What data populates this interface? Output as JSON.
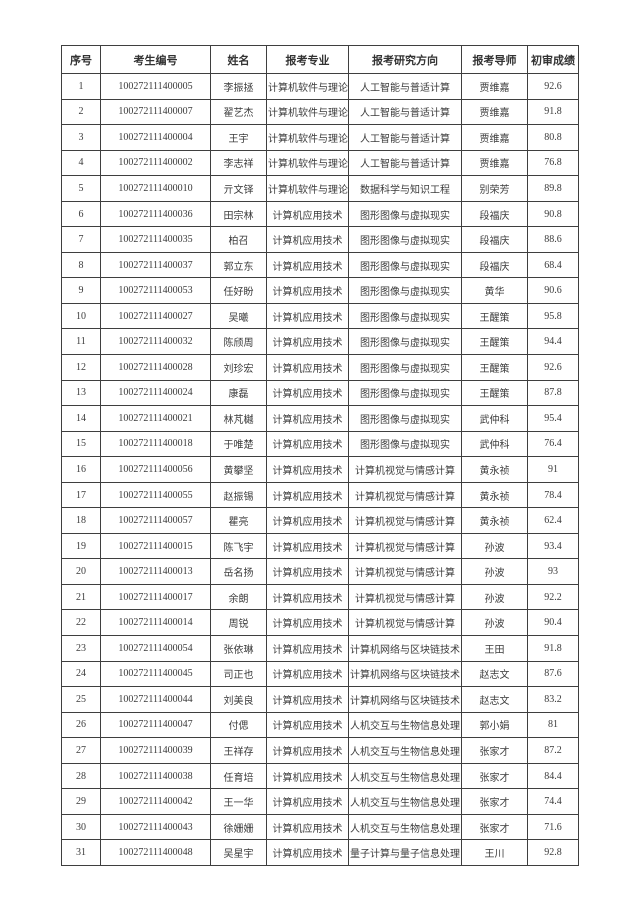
{
  "page": {
    "background_color": "#ffffff",
    "border_color": "#3f3f3f",
    "text_color": "#3b3b3b"
  },
  "table": {
    "headers": [
      "序号",
      "考生编号",
      "姓名",
      "报考专业",
      "报考研究方向",
      "报考导师",
      "初审成绩"
    ],
    "rows": [
      [
        "1",
        "100272111400005",
        "李振拯",
        "计算机软件与理论",
        "人工智能与普适计算",
        "贾维嘉",
        "92.6"
      ],
      [
        "2",
        "100272111400007",
        "翟艺杰",
        "计算机软件与理论",
        "人工智能与普适计算",
        "贾维嘉",
        "91.8"
      ],
      [
        "3",
        "100272111400004",
        "王宇",
        "计算机软件与理论",
        "人工智能与普适计算",
        "贾维嘉",
        "80.8"
      ],
      [
        "4",
        "100272111400002",
        "李志祥",
        "计算机软件与理论",
        "人工智能与普适计算",
        "贾维嘉",
        "76.8"
      ],
      [
        "5",
        "100272111400010",
        "亓文铎",
        "计算机软件与理论",
        "数据科学与知识工程",
        "别荣芳",
        "89.8"
      ],
      [
        "6",
        "100272111400036",
        "田宗林",
        "计算机应用技术",
        "图形图像与虚拟现实",
        "段福庆",
        "90.8"
      ],
      [
        "7",
        "100272111400035",
        "柏召",
        "计算机应用技术",
        "图形图像与虚拟现实",
        "段福庆",
        "88.6"
      ],
      [
        "8",
        "100272111400037",
        "郭立东",
        "计算机应用技术",
        "图形图像与虚拟现实",
        "段福庆",
        "68.4"
      ],
      [
        "9",
        "100272111400053",
        "任好盼",
        "计算机应用技术",
        "图形图像与虚拟现实",
        "黄华",
        "90.6"
      ],
      [
        "10",
        "100272111400027",
        "吴曦",
        "计算机应用技术",
        "图形图像与虚拟现实",
        "王醒策",
        "95.8"
      ],
      [
        "11",
        "100272111400032",
        "陈颀周",
        "计算机应用技术",
        "图形图像与虚拟现实",
        "王醒策",
        "94.4"
      ],
      [
        "12",
        "100272111400028",
        "刘珍宏",
        "计算机应用技术",
        "图形图像与虚拟现实",
        "王醒策",
        "92.6"
      ],
      [
        "13",
        "100272111400024",
        "康磊",
        "计算机应用技术",
        "图形图像与虚拟现实",
        "王醒策",
        "87.8"
      ],
      [
        "14",
        "100272111400021",
        "林芃樾",
        "计算机应用技术",
        "图形图像与虚拟现实",
        "武仲科",
        "95.4"
      ],
      [
        "15",
        "100272111400018",
        "于唯楚",
        "计算机应用技术",
        "图形图像与虚拟现实",
        "武仲科",
        "76.4"
      ],
      [
        "16",
        "100272111400056",
        "黄攀坚",
        "计算机应用技术",
        "计算机视觉与情感计算",
        "黄永祯",
        "91"
      ],
      [
        "17",
        "100272111400055",
        "赵振锡",
        "计算机应用技术",
        "计算机视觉与情感计算",
        "黄永祯",
        "78.4"
      ],
      [
        "18",
        "100272111400057",
        "瞿亮",
        "计算机应用技术",
        "计算机视觉与情感计算",
        "黄永祯",
        "62.4"
      ],
      [
        "19",
        "100272111400015",
        "陈飞宇",
        "计算机应用技术",
        "计算机视觉与情感计算",
        "孙波",
        "93.4"
      ],
      [
        "20",
        "100272111400013",
        "岳名扬",
        "计算机应用技术",
        "计算机视觉与情感计算",
        "孙波",
        "93"
      ],
      [
        "21",
        "100272111400017",
        "余朗",
        "计算机应用技术",
        "计算机视觉与情感计算",
        "孙波",
        "92.2"
      ],
      [
        "22",
        "100272111400014",
        "周锐",
        "计算机应用技术",
        "计算机视觉与情感计算",
        "孙波",
        "90.4"
      ],
      [
        "23",
        "100272111400054",
        "张依琳",
        "计算机应用技术",
        "计算机网络与区块链技术",
        "王田",
        "91.8"
      ],
      [
        "24",
        "100272111400045",
        "司正也",
        "计算机应用技术",
        "计算机网络与区块链技术",
        "赵志文",
        "87.6"
      ],
      [
        "25",
        "100272111400044",
        "刘美良",
        "计算机应用技术",
        "计算机网络与区块链技术",
        "赵志文",
        "83.2"
      ],
      [
        "26",
        "100272111400047",
        "付偲",
        "计算机应用技术",
        "人机交互与生物信息处理",
        "郭小娟",
        "81"
      ],
      [
        "27",
        "100272111400039",
        "王祥存",
        "计算机应用技术",
        "人机交互与生物信息处理",
        "张家才",
        "87.2"
      ],
      [
        "28",
        "100272111400038",
        "任育培",
        "计算机应用技术",
        "人机交互与生物信息处理",
        "张家才",
        "84.4"
      ],
      [
        "29",
        "100272111400042",
        "王一华",
        "计算机应用技术",
        "人机交互与生物信息处理",
        "张家才",
        "74.4"
      ],
      [
        "30",
        "100272111400043",
        "徐姗姗",
        "计算机应用技术",
        "人机交互与生物信息处理",
        "张家才",
        "71.6"
      ],
      [
        "31",
        "100272111400048",
        "吴星宇",
        "计算机应用技术",
        "量子计算与量子信息处理",
        "王川",
        "92.8"
      ]
    ]
  }
}
